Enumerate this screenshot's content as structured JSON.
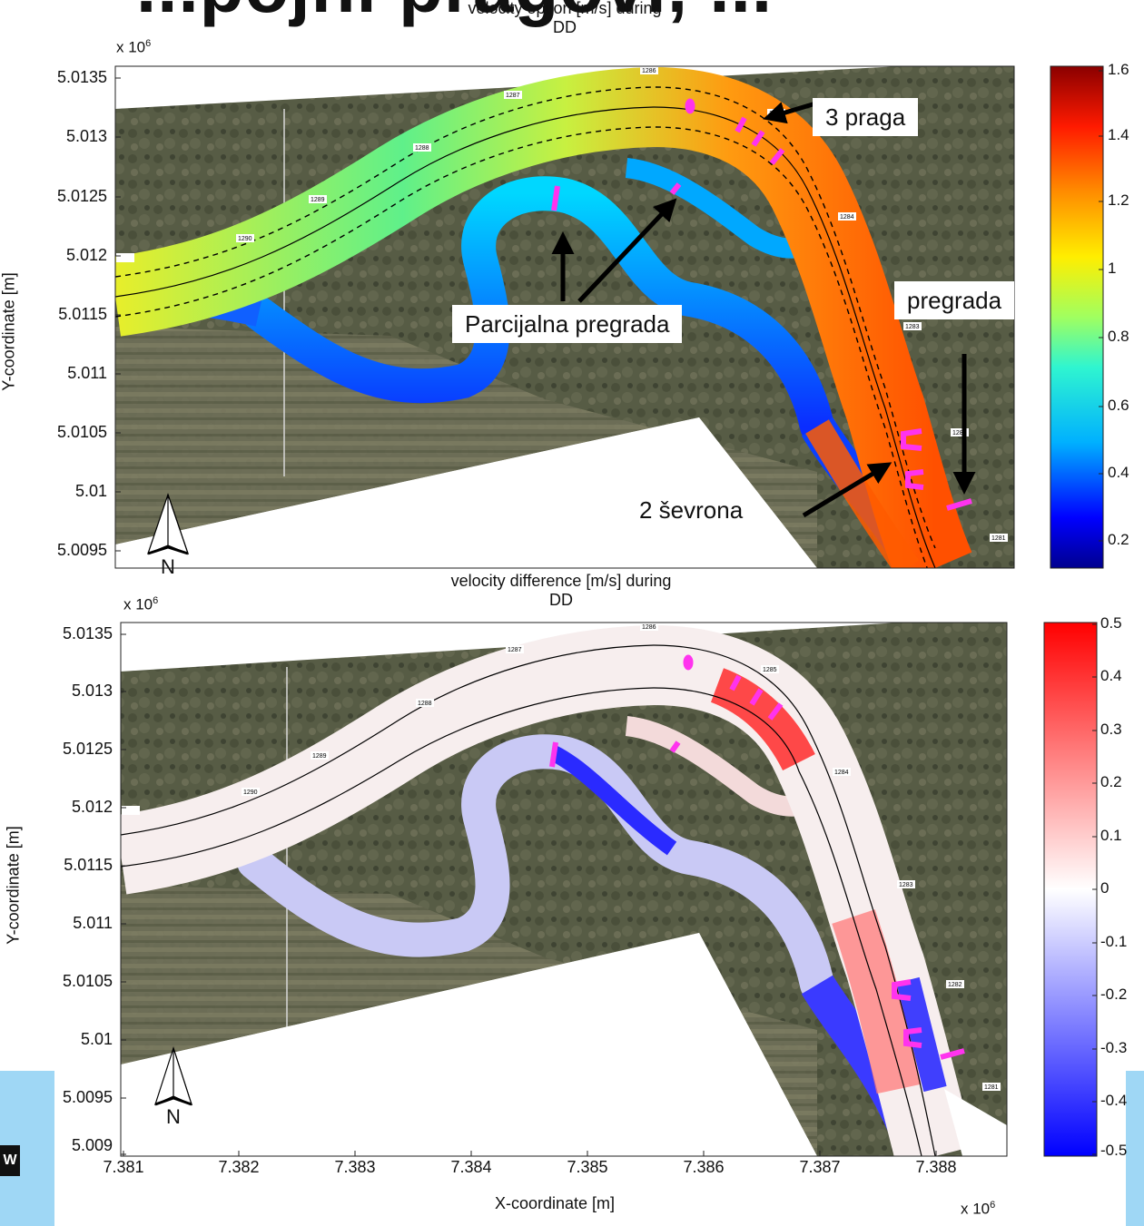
{
  "slide_background": {
    "title_fragment": "...pojni pragovi, ...",
    "corner_label": "W"
  },
  "top_plot": {
    "title_line1": "velocity option [m/s] during",
    "title_line2": "DD",
    "y_exponent": "x 10",
    "y_exponent_power": "6",
    "y_label": "Y-coordinate [m]",
    "y_ticks": [
      "5.0135",
      "5.013",
      "5.0125",
      "5.012",
      "5.0115",
      "5.011",
      "5.0105",
      "5.01",
      "5.0095"
    ],
    "colorbar_ticks": [
      "1.6",
      "1.4",
      "1.2",
      "1",
      "0.8",
      "0.6",
      "0.4",
      "0.2"
    ],
    "colorbar_colors": [
      "#00008f",
      "#0000ff",
      "#00b0ff",
      "#2ff5d0",
      "#a0ff60",
      "#ffee00",
      "#ff8c00",
      "#ff1a00",
      "#8a0000"
    ],
    "north_label": "N",
    "annotations": {
      "tri_sill": "3 praga",
      "partial_weir": "Parcijalna pregrada",
      "weir": "pregrada",
      "chevrons": "2 ševrona"
    }
  },
  "bottom_plot": {
    "title_line1": "velocity difference [m/s] during",
    "title_line2": "DD",
    "y_exponent": "x 10",
    "y_exponent_power": "6",
    "x_exponent": "x 10",
    "x_exponent_power": "6",
    "y_label": "Y-coordinate [m]",
    "x_label": "X-coordinate [m]",
    "y_ticks": [
      "5.0135",
      "5.013",
      "5.0125",
      "5.012",
      "5.0115",
      "5.011",
      "5.0105",
      "5.01",
      "5.0095",
      "5.009"
    ],
    "x_ticks": [
      "7.381",
      "7.382",
      "7.383",
      "7.384",
      "7.385",
      "7.386",
      "7.387",
      "7.388"
    ],
    "colorbar_ticks": [
      "0.5",
      "0.4",
      "0.3",
      "0.2",
      "0.1",
      "0",
      "-0.1",
      "-0.2",
      "-0.3",
      "-0.4",
      "-0.5"
    ],
    "colorbar_colors": [
      "#0000ff",
      "#ffffff",
      "#ff0000"
    ],
    "north_label": "N"
  },
  "map_markers": [
    "1290",
    "1289",
    "1288",
    "1287",
    "1286",
    "1285",
    "1284",
    "1283",
    "1282",
    "1281"
  ],
  "colors": {
    "structure_magenta": "#ff33ee",
    "terrain": "#5a5f48"
  }
}
